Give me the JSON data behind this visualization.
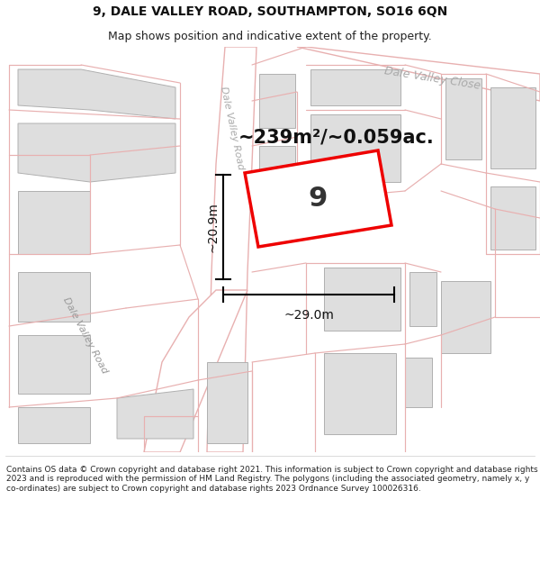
{
  "title": "9, DALE VALLEY ROAD, SOUTHAMPTON, SO16 6QN",
  "subtitle": "Map shows position and indicative extent of the property.",
  "footer": "Contains OS data © Crown copyright and database right 2021. This information is subject to Crown copyright and database rights 2023 and is reproduced with the permission of HM Land Registry. The polygons (including the associated geometry, namely x, y co-ordinates) are subject to Crown copyright and database rights 2023 Ordnance Survey 100026316.",
  "map_bg": "#f2f2f2",
  "building_fill": "#dedede",
  "building_edge": "#b0b0b0",
  "road_fill": "#ffffff",
  "pink": "#e8b0b0",
  "plot_color": "#ee0000",
  "plot_fill": "#ffffff",
  "area_text": "~239m²/~0.059ac.",
  "width_text": "~29.0m",
  "height_text": "~20.9m",
  "number_text": "9",
  "road_label_dvr_left": "Dale Valley Road",
  "road_label_dvr_center": "Dale Valley Road",
  "road_label_dvc": "Dale Valley Close",
  "title_fontsize": 10,
  "subtitle_fontsize": 9,
  "footer_fontsize": 6.5
}
